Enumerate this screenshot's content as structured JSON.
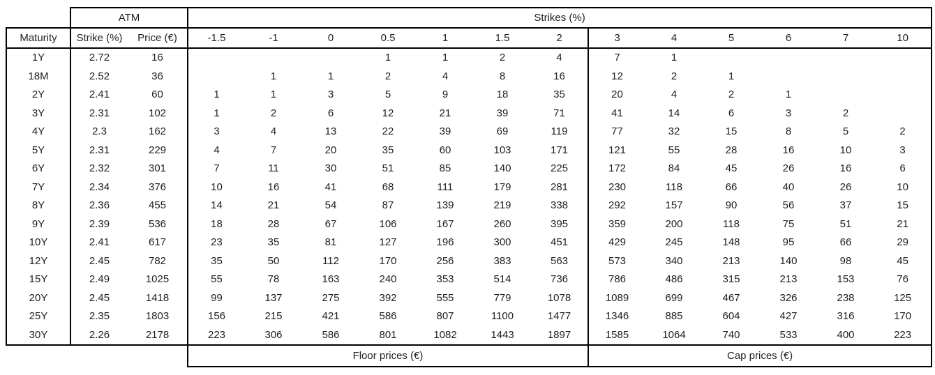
{
  "table": {
    "group_headers": {
      "corner": "",
      "atm": "ATM",
      "strikes": "Strikes (%)"
    },
    "columns": [
      "Maturity",
      "Strike (%)",
      "Price (€)",
      "-1.5",
      "-1",
      "0",
      "0.5",
      "1",
      "1.5",
      "2",
      "3",
      "4",
      "5",
      "6",
      "7",
      "10"
    ],
    "rows": [
      [
        "1Y",
        "2.72",
        "16",
        "",
        "",
        "",
        "1",
        "1",
        "2",
        "4",
        "7",
        "1",
        "",
        "",
        "",
        ""
      ],
      [
        "18M",
        "2.52",
        "36",
        "",
        "1",
        "1",
        "2",
        "4",
        "8",
        "16",
        "12",
        "2",
        "1",
        "",
        "",
        ""
      ],
      [
        "2Y",
        "2.41",
        "60",
        "1",
        "1",
        "3",
        "5",
        "9",
        "18",
        "35",
        "20",
        "4",
        "2",
        "1",
        "",
        ""
      ],
      [
        "3Y",
        "2.31",
        "102",
        "1",
        "2",
        "6",
        "12",
        "21",
        "39",
        "71",
        "41",
        "14",
        "6",
        "3",
        "2",
        ""
      ],
      [
        "4Y",
        "2.3",
        "162",
        "3",
        "4",
        "13",
        "22",
        "39",
        "69",
        "119",
        "77",
        "32",
        "15",
        "8",
        "5",
        "2"
      ],
      [
        "5Y",
        "2.31",
        "229",
        "4",
        "7",
        "20",
        "35",
        "60",
        "103",
        "171",
        "121",
        "55",
        "28",
        "16",
        "10",
        "3"
      ],
      [
        "6Y",
        "2.32",
        "301",
        "7",
        "11",
        "30",
        "51",
        "85",
        "140",
        "225",
        "172",
        "84",
        "45",
        "26",
        "16",
        "6"
      ],
      [
        "7Y",
        "2.34",
        "376",
        "10",
        "16",
        "41",
        "68",
        "111",
        "179",
        "281",
        "230",
        "118",
        "66",
        "40",
        "26",
        "10"
      ],
      [
        "8Y",
        "2.36",
        "455",
        "14",
        "21",
        "54",
        "87",
        "139",
        "219",
        "338",
        "292",
        "157",
        "90",
        "56",
        "37",
        "15"
      ],
      [
        "9Y",
        "2.39",
        "536",
        "18",
        "28",
        "67",
        "106",
        "167",
        "260",
        "395",
        "359",
        "200",
        "118",
        "75",
        "51",
        "21"
      ],
      [
        "10Y",
        "2.41",
        "617",
        "23",
        "35",
        "81",
        "127",
        "196",
        "300",
        "451",
        "429",
        "245",
        "148",
        "95",
        "66",
        "29"
      ],
      [
        "12Y",
        "2.45",
        "782",
        "35",
        "50",
        "112",
        "170",
        "256",
        "383",
        "563",
        "573",
        "340",
        "213",
        "140",
        "98",
        "45"
      ],
      [
        "15Y",
        "2.49",
        "1025",
        "55",
        "78",
        "163",
        "240",
        "353",
        "514",
        "736",
        "786",
        "486",
        "315",
        "213",
        "153",
        "76"
      ],
      [
        "20Y",
        "2.45",
        "1418",
        "99",
        "137",
        "275",
        "392",
        "555",
        "779",
        "1078",
        "1089",
        "699",
        "467",
        "326",
        "238",
        "125"
      ],
      [
        "25Y",
        "2.35",
        "1803",
        "156",
        "215",
        "421",
        "586",
        "807",
        "1100",
        "1477",
        "1346",
        "885",
        "604",
        "427",
        "316",
        "170"
      ],
      [
        "30Y",
        "2.26",
        "2178",
        "223",
        "306",
        "586",
        "801",
        "1082",
        "1443",
        "1897",
        "1585",
        "1064",
        "740",
        "533",
        "400",
        "223"
      ]
    ],
    "footers": {
      "floor": "Floor prices (€)",
      "cap": "Cap prices (€)"
    }
  },
  "colors": {
    "border": "#000000",
    "text": "#1f1f1f",
    "background": "#ffffff"
  }
}
